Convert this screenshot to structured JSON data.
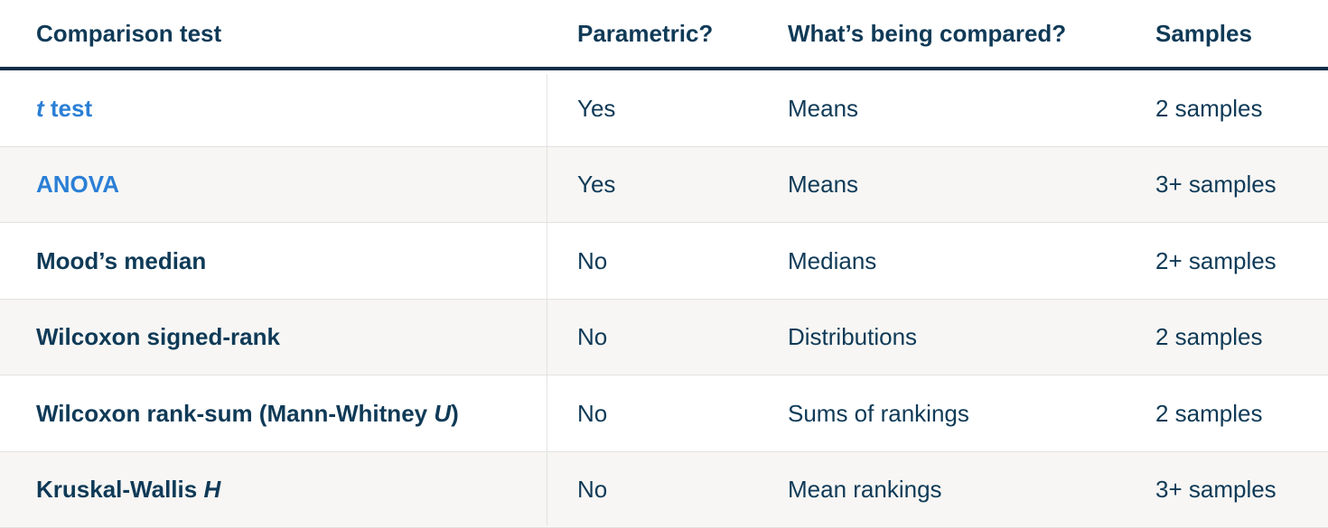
{
  "headers": {
    "test": "Comparison test",
    "parametric": "Parametric?",
    "compared": "What’s being compared?",
    "samples": "Samples"
  },
  "rows": [
    {
      "test_pre": "",
      "test_italic": "t",
      "test_post": " test",
      "is_link": true,
      "parametric": "Yes",
      "compared": "Means",
      "samples": "2 samples"
    },
    {
      "test_pre": "ANOVA",
      "test_italic": "",
      "test_post": "",
      "is_link": true,
      "parametric": "Yes",
      "compared": "Means",
      "samples": "3+ samples"
    },
    {
      "test_pre": "Mood’s median",
      "test_italic": "",
      "test_post": "",
      "is_link": false,
      "parametric": "No",
      "compared": "Medians",
      "samples": "2+ samples"
    },
    {
      "test_pre": "Wilcoxon signed-rank",
      "test_italic": "",
      "test_post": "",
      "is_link": false,
      "parametric": "No",
      "compared": "Distributions",
      "samples": "2 samples"
    },
    {
      "test_pre": "Wilcoxon rank-sum (Mann-Whitney ",
      "test_italic": "U",
      "test_post": ")",
      "is_link": false,
      "parametric": "No",
      "compared": "Sums of rankings",
      "samples": "2 samples"
    },
    {
      "test_pre": "Kruskal-Wallis ",
      "test_italic": "H",
      "test_post": "",
      "is_link": false,
      "parametric": "No",
      "compared": "Mean rankings",
      "samples": "3+ samples"
    }
  ],
  "colors": {
    "text": "#0f3a57",
    "link": "#2b7fd6",
    "header_rule": "#0f2e48",
    "stripe": "#f7f6f4"
  }
}
